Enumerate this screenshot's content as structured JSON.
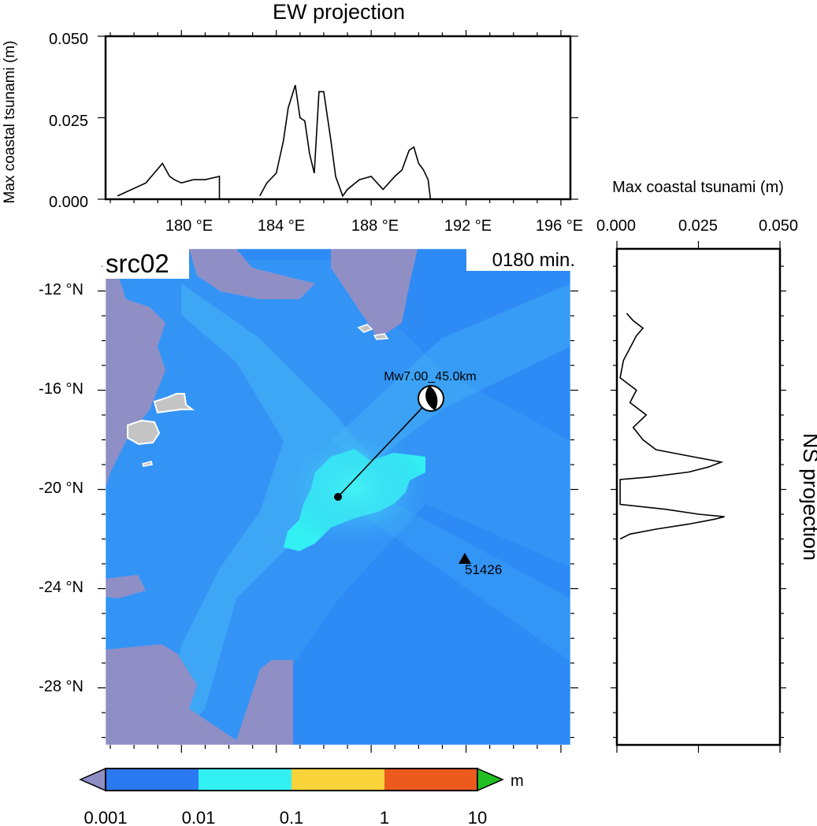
{
  "ew_panel": {
    "title": "EW projection",
    "ylabel": "Max coastal tsunami (m)",
    "y_ticks": [
      "0.000",
      "0.025",
      "0.050"
    ],
    "x_ticks": [
      "180 °E",
      "184 °E",
      "188 °E",
      "192 °E",
      "196 °E"
    ]
  },
  "ns_panel": {
    "title": "NS projection",
    "xlabel": "Max coastal tsunami (m)",
    "x_ticks": [
      "0.000",
      "0.025",
      "0.050"
    ]
  },
  "map": {
    "label": "src02",
    "time": "0180 min.",
    "lat_ticks": [
      "-12 °N",
      "-16 °N",
      "-20 °N",
      "-24 °N",
      "-28 °N"
    ],
    "event_label": "Mw7.00_45.0km",
    "station_label": "51426",
    "colors": {
      "land": "#8f8fc6",
      "ocean_base": "#2e8af5",
      "ocean_mid": "#3aa7f7",
      "wave_high": "#33f0f2",
      "island": "#c4c4c4"
    }
  },
  "colorbar": {
    "unit": "m",
    "ticks": [
      "0.001",
      "0.01",
      "0.1",
      "1",
      "10"
    ],
    "colors": [
      "#8f8fc6",
      "#2a79f2",
      "#23c2f2",
      "#33f0f2",
      "#ffff60",
      "#f3a21d",
      "#e02020",
      "#22c022"
    ]
  },
  "chart_data": [
    {
      "type": "line",
      "title": "EW projection",
      "ylabel": "Max coastal tsunami (m)",
      "xlim": [
        176.8,
        196.4
      ],
      "ylim": [
        0,
        0.05
      ],
      "x": [
        177.3,
        178.5,
        179.2,
        179.5,
        179.7,
        180.0,
        180.5,
        181.0,
        181.6,
        181.6,
        183.3,
        183.6,
        184.0,
        184.3,
        184.5,
        184.8,
        185.0,
        185.2,
        185.4,
        185.6,
        185.8,
        186.0,
        186.3,
        186.5,
        186.8,
        187.0,
        187.5,
        188.0,
        188.5,
        189.0,
        189.3,
        189.6,
        189.8,
        190.0,
        190.2,
        190.4,
        190.5
      ],
      "y": [
        0.001,
        0.005,
        0.011,
        0.007,
        0.006,
        0.005,
        0.006,
        0.006,
        0.007,
        0.0,
        0.001,
        0.005,
        0.008,
        0.018,
        0.028,
        0.035,
        0.025,
        0.024,
        0.014,
        0.008,
        0.033,
        0.033,
        0.018,
        0.007,
        0.001,
        0.003,
        0.006,
        0.007,
        0.003,
        0.007,
        0.009,
        0.015,
        0.016,
        0.011,
        0.009,
        0.006,
        0.0
      ]
    },
    {
      "type": "line",
      "title": "NS projection",
      "xlabel": "Max coastal tsunami (m)",
      "xlim": [
        0,
        0.05
      ],
      "ylim": [
        -30.3,
        -10.3
      ],
      "y": [
        -12.9,
        -13.2,
        -13.5,
        -13.8,
        -14.3,
        -14.8,
        -15.5,
        -16.0,
        -16.5,
        -17.0,
        -17.5,
        -18.0,
        -18.4,
        -18.7,
        -18.9,
        -19.1,
        -19.3,
        -19.5,
        -19.6,
        -20.6,
        -20.8,
        -21.0,
        -21.1,
        -21.2,
        -21.4,
        -21.6,
        -21.8,
        -22.0
      ],
      "x": [
        0.003,
        0.005,
        0.008,
        0.006,
        0.004,
        0.002,
        0.001,
        0.006,
        0.004,
        0.009,
        0.005,
        0.008,
        0.012,
        0.024,
        0.032,
        0.028,
        0.022,
        0.01,
        0.001,
        0.001,
        0.015,
        0.025,
        0.033,
        0.03,
        0.022,
        0.012,
        0.004,
        0.001
      ]
    }
  ]
}
